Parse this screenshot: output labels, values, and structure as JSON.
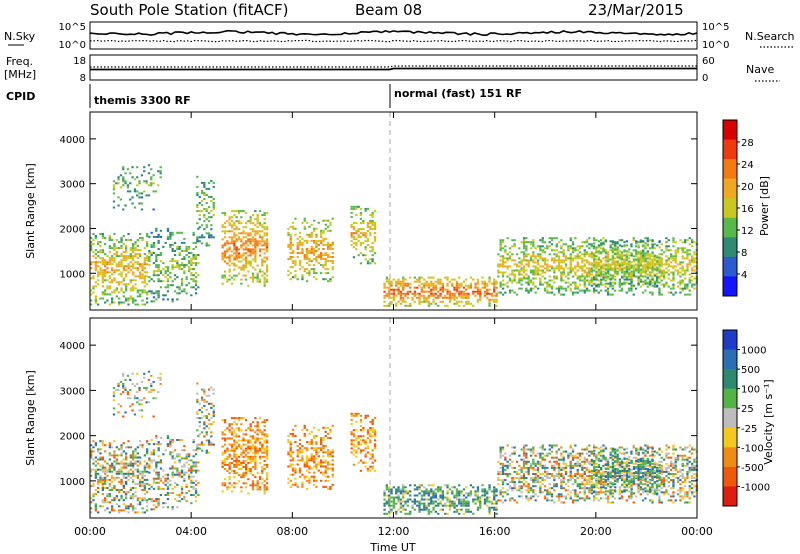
{
  "header": {
    "station": "South Pole Station (fitACF)",
    "beam": "Beam 08",
    "date": "23/Mar/2015"
  },
  "noise_panel": {
    "left_label": "N.Sky",
    "right_label": "N.Search",
    "left_ticks": [
      "10^5",
      "10^0"
    ],
    "right_ticks": [
      "10^5",
      "10^0"
    ]
  },
  "freq_panel": {
    "left_label_1": "Freq.",
    "left_label_2": "[MHz]",
    "right_label": "Nave",
    "left_ticks": [
      "18",
      "8"
    ],
    "right_ticks": [
      "60",
      "0"
    ]
  },
  "cpid_panel": {
    "label": "CPID",
    "segments": [
      {
        "label": "themis 3300 RF",
        "start_ut": 0
      },
      {
        "label": "normal (fast) 151 RF",
        "start_ut": 12
      }
    ]
  },
  "chart_data": [
    {
      "type": "heatmap",
      "name": "power",
      "ylabel": "Slant Range [km]",
      "xlabel": "",
      "y_ticks": [
        "1000",
        "2000",
        "3000",
        "4000"
      ],
      "ylim": [
        180,
        4600
      ],
      "xlim": [
        0,
        24
      ],
      "colorbar": {
        "label": "Power [dB]",
        "ticks": [
          "4",
          "8",
          "12",
          "16",
          "20",
          "24",
          "28"
        ],
        "range": [
          0,
          32
        ],
        "colors": [
          "#1414ff",
          "#2a5bd0",
          "#2e8a72",
          "#58b84a",
          "#c8c81e",
          "#f2a81e",
          "#f57a10",
          "#ee3a0c",
          "#d80000"
        ]
      }
    },
    {
      "type": "heatmap",
      "name": "velocity",
      "ylabel": "Slant Range [km]",
      "xlabel": "Time UT",
      "x_ticks": [
        "00:00",
        "04:00",
        "08:00",
        "12:00",
        "16:00",
        "20:00",
        "00:00"
      ],
      "y_ticks": [
        "1000",
        "2000",
        "3000",
        "4000"
      ],
      "ylim": [
        180,
        4600
      ],
      "xlim": [
        0,
        24
      ],
      "colorbar": {
        "label": "Velocity [m s⁻¹]",
        "ticks": [
          "1000",
          "500",
          "100",
          "25",
          "-25",
          "-100",
          "-500",
          "-1000"
        ],
        "colors": [
          "#1e3cc8",
          "#2a6eb4",
          "#2e8a6e",
          "#52b442",
          "#bdbdbd",
          "#f5c81e",
          "#f08c14",
          "#ee5a0a",
          "#e01e10"
        ]
      }
    }
  ],
  "scatter_regions": [
    {
      "t": [
        0.0,
        2.3
      ],
      "r": [
        280,
        1900
      ],
      "density": 0.55,
      "power_core": 20,
      "vel": "mixed"
    },
    {
      "t": [
        0.9,
        2.8
      ],
      "r": [
        2400,
        3500
      ],
      "density": 0.25,
      "power_core": 12,
      "vel": "mixed"
    },
    {
      "t": [
        2.3,
        4.3
      ],
      "r": [
        350,
        2000
      ],
      "density": 0.4,
      "power_core": 14,
      "vel": "mixed"
    },
    {
      "t": [
        4.2,
        4.9
      ],
      "r": [
        1600,
        3200
      ],
      "density": 0.35,
      "power_core": 14,
      "vel": "mixed"
    },
    {
      "t": [
        5.2,
        7.0
      ],
      "r": [
        700,
        2400
      ],
      "density": 0.6,
      "power_core": 24,
      "vel": "neg"
    },
    {
      "t": [
        7.8,
        9.6
      ],
      "r": [
        800,
        2200
      ],
      "density": 0.5,
      "power_core": 22,
      "vel": "neg"
    },
    {
      "t": [
        10.3,
        11.3
      ],
      "r": [
        1200,
        2500
      ],
      "density": 0.5,
      "power_core": 20,
      "vel": "neg"
    },
    {
      "t": [
        11.6,
        16.1
      ],
      "r": [
        250,
        900
      ],
      "density": 0.7,
      "power_core": 26,
      "vel": "pos"
    },
    {
      "t": [
        16.1,
        24.0
      ],
      "r": [
        500,
        1800
      ],
      "density": 0.6,
      "power_core": 18,
      "vel": "mixed"
    },
    {
      "t": [
        19.8,
        22.5
      ],
      "r": [
        700,
        1700
      ],
      "density": 0.6,
      "power_core": 16,
      "vel": "pos"
    }
  ]
}
